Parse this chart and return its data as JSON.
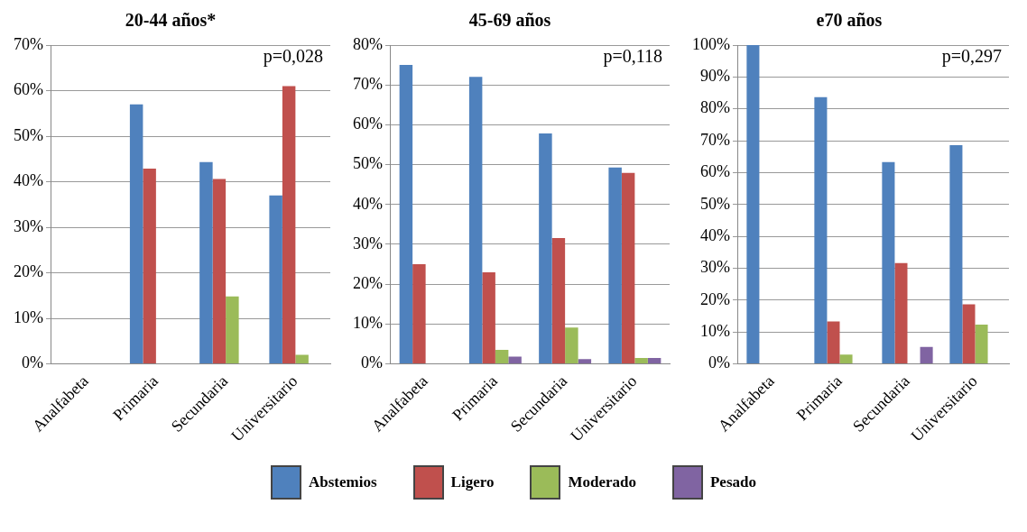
{
  "chart_data": [
    {
      "type": "bar",
      "title": "20-44 años*",
      "categories": [
        "Analfabeta",
        "Primaria",
        "Secundaria",
        "Universitario"
      ],
      "series": [
        {
          "color": "#4f81bd",
          "values": [
            0,
            57,
            44.3,
            37
          ]
        },
        {
          "color": "#c0504d",
          "values": [
            0,
            42.9,
            40.6,
            61
          ]
        },
        {
          "color": "#9bbb59",
          "values": [
            0,
            0,
            14.8,
            2
          ]
        },
        {
          "color": "#8064a2",
          "values": [
            0,
            0,
            0,
            0
          ]
        }
      ],
      "ylim": [
        0,
        70
      ],
      "yticks": [
        {
          "value": 0,
          "label": "0%"
        },
        {
          "value": 10,
          "label": "10%"
        },
        {
          "value": 20,
          "label": "20%"
        },
        {
          "value": 30,
          "label": "30%"
        },
        {
          "value": 40,
          "label": "40%"
        },
        {
          "value": 50,
          "label": "50%"
        },
        {
          "value": 60,
          "label": "60%"
        },
        {
          "value": 70,
          "label": "70%"
        }
      ],
      "grid": "y",
      "annotations": [
        "p=0,028"
      ]
    },
    {
      "type": "bar",
      "title": "45-69 años",
      "categories": [
        "Analfabeta",
        "Primaria",
        "Secundaria",
        "Universitario"
      ],
      "series": [
        {
          "name": "Abstemios",
          "color": "#4f81bd",
          "values": [
            75,
            72,
            57.8,
            49.3
          ]
        },
        {
          "name": "Ligero",
          "color": "#c0504d",
          "values": [
            25,
            23,
            31.6,
            47.9
          ]
        },
        {
          "name": "Moderado",
          "color": "#9bbb59",
          "values": [
            0,
            3.5,
            9.1,
            1.5
          ]
        },
        {
          "name": "Pesado",
          "color": "#8064a2",
          "values": [
            0,
            1.8,
            1.2,
            1.5
          ]
        }
      ],
      "ylim": [
        0,
        80
      ],
      "yticks": [
        {
          "value": 0,
          "label": "0%"
        },
        {
          "value": 10,
          "label": "10%"
        },
        {
          "value": 20,
          "label": "20%"
        },
        {
          "value": 30,
          "label": "30%"
        },
        {
          "value": 40,
          "label": "40%"
        },
        {
          "value": 50,
          "label": "50%"
        },
        {
          "value": 60,
          "label": "60%"
        },
        {
          "value": 70,
          "label": "70%"
        },
        {
          "value": 80,
          "label": "80%"
        }
      ],
      "grid": "y",
      "legend": "bottom",
      "annotations": [
        "p=0,118"
      ]
    },
    {
      "type": "bar",
      "title": "e70 años",
      "categories": [
        "Analfabeta",
        "Primaria",
        "Secundaria",
        "Universitario"
      ],
      "series": [
        {
          "color": "#4f81bd",
          "values": [
            100,
            83.7,
            63.3,
            68.6
          ]
        },
        {
          "color": "#c0504d",
          "values": [
            0,
            13.3,
            31.6,
            18.7
          ]
        },
        {
          "color": "#9bbb59",
          "values": [
            0,
            2.9,
            0,
            12.3
          ]
        },
        {
          "color": "#8064a2",
          "values": [
            0,
            0,
            5.3,
            0
          ]
        }
      ],
      "ylim": [
        0,
        100
      ],
      "yticks": [
        {
          "value": 0,
          "label": "0%"
        },
        {
          "value": 10,
          "label": "10%"
        },
        {
          "value": 20,
          "label": "20%"
        },
        {
          "value": 30,
          "label": "30%"
        },
        {
          "value": 40,
          "label": "40%"
        },
        {
          "value": 50,
          "label": "50%"
        },
        {
          "value": 60,
          "label": "60%"
        },
        {
          "value": 70,
          "label": "70%"
        },
        {
          "value": 80,
          "label": "80%"
        },
        {
          "value": 90,
          "label": "90%"
        },
        {
          "value": 100,
          "label": "100%"
        }
      ],
      "grid": "y",
      "annotations": [
        "p=0,297"
      ]
    }
  ]
}
